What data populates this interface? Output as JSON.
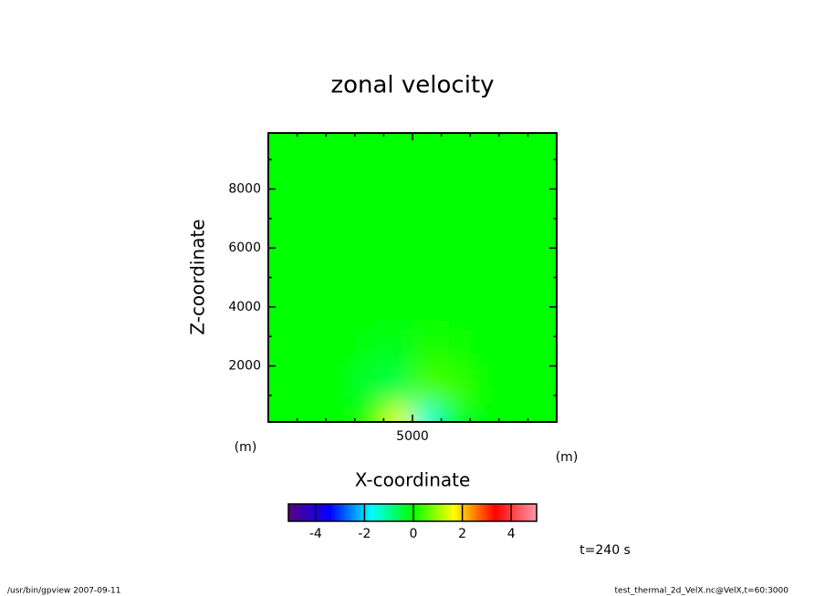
{
  "chart_data": {
    "type": "heatmap",
    "title": "zonal velocity",
    "x_label": "X-coordinate",
    "y_label": "Z-coordinate",
    "x_unit": "(m)",
    "y_unit": "(m)",
    "annotation": "t=240 s",
    "footer_left": "/usr/bin/gpview  2007-09-11",
    "footer_right": "test_thermal_2d_VelX.nc@VelX,t=60:3000",
    "x": [
      500,
      1500,
      2500,
      3500,
      4500,
      5500,
      6500,
      7500,
      8500,
      9500
    ],
    "y": [
      300,
      1000,
      1700,
      2500,
      4000,
      7000
    ],
    "z": [
      [
        0,
        0,
        0,
        0.2,
        1.5,
        -1.5,
        -0.3,
        0,
        0,
        0
      ],
      [
        0,
        0,
        0,
        -0.3,
        -0.6,
        0.6,
        0.4,
        0,
        0,
        0
      ],
      [
        0,
        0,
        0,
        -0.3,
        -0.4,
        0.4,
        0.3,
        0,
        0,
        0
      ],
      [
        0,
        0,
        0,
        -0.1,
        -0.2,
        0.2,
        0.1,
        0,
        0,
        0
      ],
      [
        0,
        0,
        0,
        0,
        0,
        0,
        0,
        0,
        0,
        0
      ],
      [
        0,
        0,
        0,
        0,
        0,
        0,
        0,
        0,
        0,
        0
      ]
    ],
    "xlim": [
      0,
      10000
    ],
    "ylim": [
      100,
      9900
    ],
    "xticks": [
      5000
    ],
    "yticks": [
      2000,
      4000,
      6000,
      8000
    ],
    "xminor": [
      1000,
      2000,
      3000,
      4000,
      6000,
      7000,
      8000,
      9000
    ],
    "yminor": [
      1000,
      3000,
      5000,
      7000,
      9000
    ],
    "zlim": [
      -5,
      5
    ],
    "zticks": [
      -4,
      -2,
      0,
      2,
      4
    ],
    "colormap": [
      "#5a0080",
      "#0000ff",
      "#00ffff",
      "#00ff00",
      "#ffff00",
      "#ff0000",
      "#ff9aa8"
    ]
  }
}
